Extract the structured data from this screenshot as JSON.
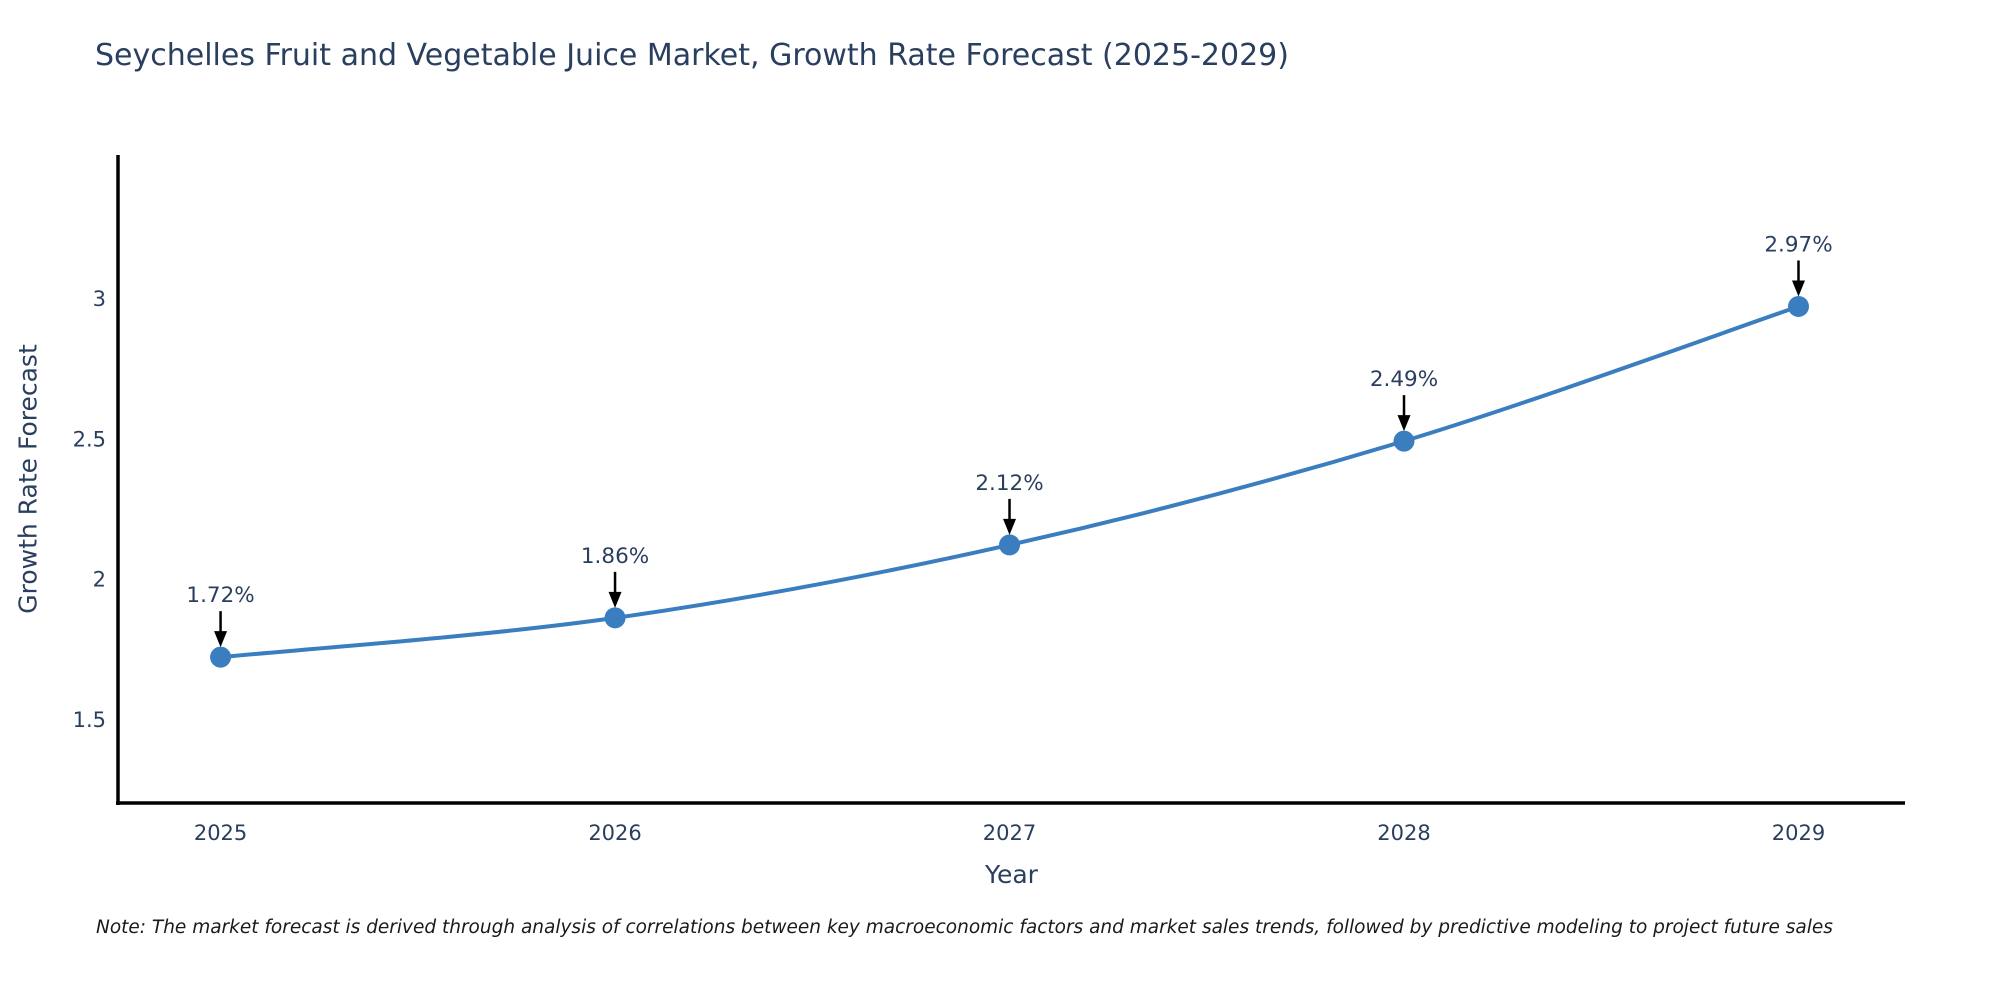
{
  "title": "Seychelles Fruit and Vegetable Juice Market, Growth Rate Forecast (2025-2029)",
  "note": "Note: The market forecast is derived through analysis of correlations between key macroeconomic factors and market sales trends, followed by predictive modeling to project future sales",
  "chart_data": {
    "type": "line",
    "x": [
      2025,
      2026,
      2027,
      2028,
      2029
    ],
    "series": [
      {
        "name": "Growth Rate Forecast",
        "values": [
          1.72,
          1.86,
          2.12,
          2.49,
          2.97
        ]
      }
    ],
    "point_labels": [
      "1.72%",
      "1.86%",
      "2.12%",
      "2.49%",
      "2.97%"
    ],
    "xtick_labels": [
      "2025",
      "2026",
      "2027",
      "2028",
      "2029"
    ],
    "ytick_values": [
      1.5,
      2,
      2.5,
      3
    ],
    "ytick_labels": [
      "1.5",
      "2",
      "2.5",
      "3"
    ],
    "xlabel": "Year",
    "ylabel": "Growth Rate Forecast",
    "xlim": [
      2024.74,
      2029.27
    ],
    "ylim": [
      1.2,
      3.51
    ],
    "grid": false,
    "legend": "none",
    "line_shape": "spline",
    "line_color": "#3a7ebf",
    "marker_color": "#3a7ebf",
    "axis_line_color": "#000000",
    "annotation_arrow_color": "#000000",
    "text_color": "#2a3f5f"
  }
}
